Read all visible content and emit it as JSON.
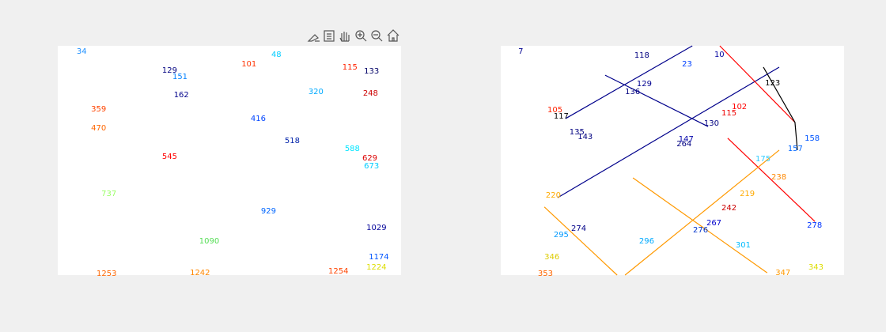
{
  "chart_data": [
    {
      "type": "scatter",
      "xlim": [
        0,
        100
      ],
      "ylim": [
        0,
        100
      ],
      "labels": [
        34,
        48,
        101,
        115,
        129,
        133,
        151,
        162,
        248,
        320,
        359,
        416,
        470,
        518,
        545,
        588,
        629,
        673,
        737,
        929,
        1029,
        1090,
        1174,
        1224,
        1242,
        1253,
        1254
      ],
      "x": [
        5.5,
        62.2,
        53.5,
        82.9,
        30.4,
        89.2,
        33.4,
        33.8,
        88.9,
        73.0,
        9.7,
        56.2,
        9.7,
        66.1,
        30.4,
        83.6,
        88.7,
        89.2,
        12.7,
        59.2,
        89.9,
        41.2,
        90.6,
        89.9,
        38.5,
        11.3,
        78.8
      ],
      "y": [
        97.6,
        96.2,
        92.1,
        90.7,
        89.3,
        89.0,
        86.6,
        78.6,
        79.3,
        80.0,
        72.4,
        68.3,
        64.1,
        58.6,
        51.7,
        55.2,
        51.0,
        47.6,
        35.5,
        27.9,
        20.7,
        14.8,
        7.9,
        3.4,
        1.0,
        0.7,
        1.7
      ],
      "colors": [
        "#1e90ff",
        "#00ccff",
        "#ff3300",
        "#ff2200",
        "#000080",
        "#000066",
        "#0080ff",
        "#00008b",
        "#cc0000",
        "#00aaff",
        "#ff4400",
        "#0044ff",
        "#ff6600",
        "#0022aa",
        "#ff0000",
        "#00e5ff",
        "#dd0000",
        "#00ccff",
        "#99ff66",
        "#0066ff",
        "#000099",
        "#55dd55",
        "#0055ff",
        "#dddd00",
        "#ff8800",
        "#ff6600",
        "#ff4400"
      ],
      "lines": []
    },
    {
      "type": "scatter",
      "xlim": [
        0,
        100
      ],
      "ylim": [
        0,
        100
      ],
      "labels": [
        7,
        10,
        23,
        118,
        123,
        129,
        136,
        130,
        102,
        115,
        105,
        117,
        135,
        143,
        147,
        264,
        157,
        158,
        175,
        238,
        219,
        220,
        242,
        267,
        276,
        274,
        295,
        296,
        301,
        278,
        343,
        347,
        353,
        346
      ],
      "x": [
        5.1,
        62.2,
        52.8,
        38.9,
        77.0,
        39.6,
        36.2,
        59.2,
        67.3,
        64.3,
        13.6,
        15.4,
        20.0,
        22.4,
        51.8,
        51.2,
        83.6,
        88.5,
        74.2,
        78.8,
        69.6,
        13.1,
        64.3,
        59.9,
        56.0,
        20.5,
        15.4,
        40.3,
        68.4,
        89.2,
        89.6,
        80.0,
        10.8,
        12.7
      ],
      "y": [
        97.6,
        96.2,
        92.1,
        95.9,
        83.8,
        83.4,
        80.0,
        66.2,
        73.4,
        70.7,
        72.1,
        69.3,
        62.4,
        60.3,
        59.3,
        57.2,
        55.2,
        59.7,
        50.7,
        42.8,
        35.5,
        34.8,
        29.3,
        22.8,
        19.7,
        20.3,
        17.6,
        14.8,
        13.1,
        21.7,
        3.4,
        1.0,
        0.7,
        7.9
      ],
      "colors": [
        "#000090",
        "#0000a0",
        "#0040ff",
        "#000080",
        "#000000",
        "#000090",
        "#000080",
        "#000080",
        "#ff0000",
        "#ee0000",
        "#ff2200",
        "#000000",
        "#000080",
        "#000080",
        "#0000aa",
        "#000080",
        "#0066ff",
        "#0055ff",
        "#33ccff",
        "#ff8800",
        "#ffaa00",
        "#ffaa00",
        "#cc0000",
        "#0000cc",
        "#0033cc",
        "#000088",
        "#0099ff",
        "#00aaff",
        "#00bbff",
        "#0033ff",
        "#dddd00",
        "#ff9900",
        "#ff6600",
        "#ddcc00"
      ],
      "lines": [
        {
          "color": "#00008b",
          "x": [
            18.9,
            55.8
          ],
          "y": [
            68.3,
            100
          ]
        },
        {
          "color": "#00008b",
          "x": [
            16.6,
            81.1
          ],
          "y": [
            33.8,
            90.7
          ]
        },
        {
          "color": "#00008b",
          "x": [
            30.4,
            60.4
          ],
          "y": [
            87.2,
            64.8
          ]
        },
        {
          "color": "#ff0000",
          "x": [
            63.8,
            85.7
          ],
          "y": [
            100,
            66.6
          ]
        },
        {
          "color": "#ff0000",
          "x": [
            66.1,
            91.5
          ],
          "y": [
            59.7,
            23.4
          ]
        },
        {
          "color": "#ff9900",
          "x": [
            12.7,
            33.9
          ],
          "y": [
            29.7,
            0
          ]
        },
        {
          "color": "#ff9900",
          "x": [
            36.2,
            81.1
          ],
          "y": [
            0,
            54.5
          ]
        },
        {
          "color": "#ff9900",
          "x": [
            38.5,
            77.6
          ],
          "y": [
            42.4,
            1.0
          ]
        },
        {
          "color": "#000000",
          "x": [
            76.5,
            85.7,
            86.4
          ],
          "y": [
            90.7,
            66.6,
            54.5
          ]
        }
      ]
    }
  ]
}
